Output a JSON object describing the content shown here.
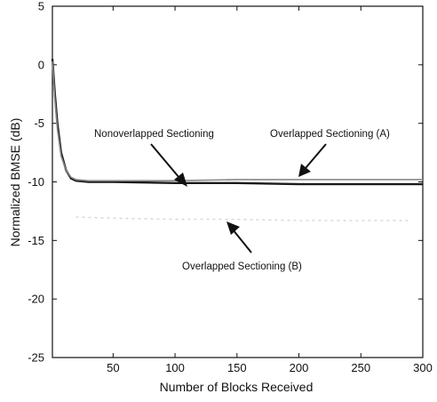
{
  "chart_data": {
    "type": "line",
    "xlabel": "Number of Blocks Received",
    "ylabel": "Normalized BMSE (dB)",
    "xlim": [
      1,
      300
    ],
    "ylim": [
      -25,
      5
    ],
    "xticks": [
      50,
      100,
      150,
      200,
      250,
      300
    ],
    "yticks": [
      5,
      0,
      -5,
      -10,
      -15,
      -20,
      -25
    ],
    "grid": false,
    "legend": "none",
    "series": [
      {
        "name": "Nonoverlapped Sectioning",
        "color": "#1a1a1a",
        "x": [
          1,
          3,
          5,
          8,
          12,
          16,
          20,
          30,
          50,
          100,
          150,
          200,
          250,
          300
        ],
        "y": [
          0.5,
          -2.5,
          -5.0,
          -7.5,
          -9.0,
          -9.7,
          -9.9,
          -10.0,
          -10.0,
          -10.1,
          -10.1,
          -10.2,
          -10.2,
          -10.2
        ]
      },
      {
        "name": "Overlapped Sectioning (A)",
        "color": "#888888",
        "x": [
          1,
          3,
          5,
          8,
          12,
          16,
          20,
          30,
          50,
          100,
          150,
          200,
          250,
          300
        ],
        "y": [
          0.3,
          -3.0,
          -5.5,
          -7.8,
          -9.0,
          -9.6,
          -9.8,
          -9.9,
          -9.9,
          -9.9,
          -9.8,
          -9.8,
          -9.8,
          -9.8
        ]
      },
      {
        "name": "Overlapped Sectioning (B)",
        "color": "#d6d6d6",
        "x": [
          20,
          50,
          100,
          150,
          200,
          250,
          290
        ],
        "y": [
          -13.0,
          -13.1,
          -13.2,
          -13.2,
          -13.3,
          -13.3,
          -13.3
        ]
      }
    ],
    "annotations": [
      {
        "text": "Nonoverlapped Sectioning"
      },
      {
        "text": "Overlapped Sectioning (A)"
      },
      {
        "text": "Overlapped Sectioning (B)"
      }
    ]
  }
}
